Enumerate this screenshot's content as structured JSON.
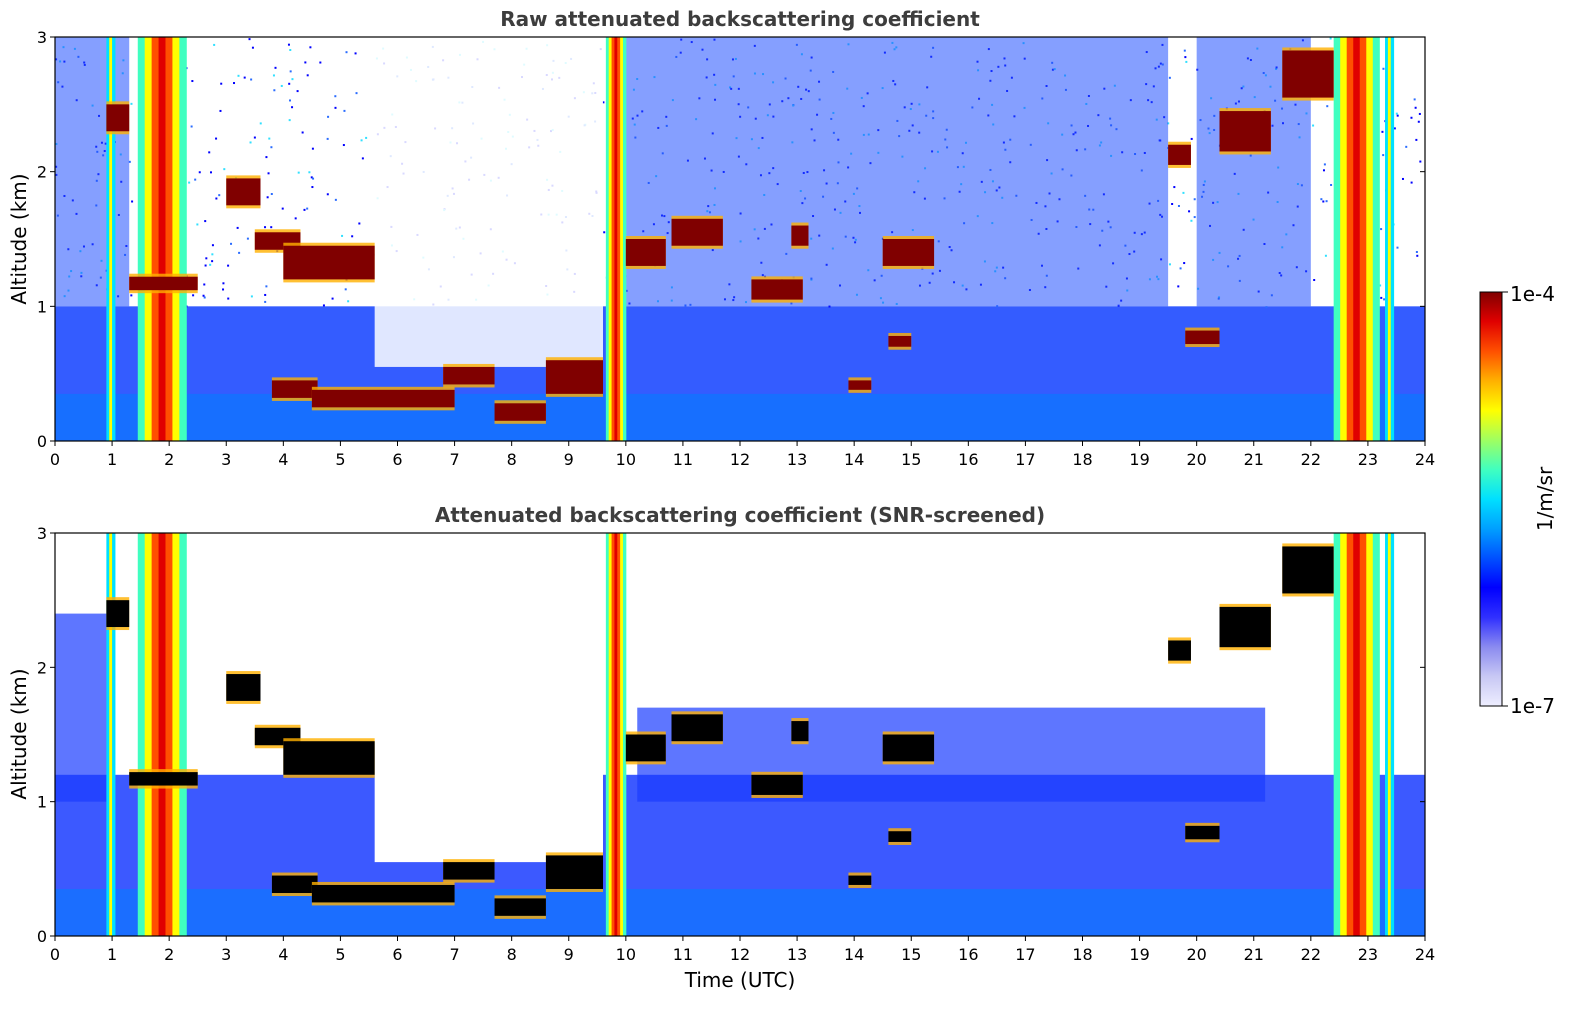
{
  "chart_data": [
    {
      "type": "heatmap",
      "title": "Raw attenuated backscattering coefficient",
      "xlabel": "",
      "ylabel": "Altitude (km)",
      "xlim": [
        0,
        24
      ],
      "ylim": [
        0,
        3
      ],
      "xticks": [
        "0",
        "1",
        "2",
        "3",
        "4",
        "5",
        "6",
        "7",
        "8",
        "9",
        "10",
        "11",
        "12",
        "13",
        "14",
        "15",
        "16",
        "17",
        "18",
        "19",
        "20",
        "21",
        "22",
        "23",
        "24"
      ],
      "yticks": [
        "0",
        "1",
        "2",
        "3"
      ],
      "background_level": "noisy blue speckle"
    },
    {
      "type": "heatmap",
      "title": "Attenuated backscattering coefficient (SNR-screened)",
      "xlabel": "Time (UTC)",
      "ylabel": "Altitude (km)",
      "xlim": [
        0,
        24
      ],
      "ylim": [
        0,
        3
      ],
      "xticks": [
        "0",
        "1",
        "2",
        "3",
        "4",
        "5",
        "6",
        "7",
        "8",
        "9",
        "10",
        "11",
        "12",
        "13",
        "14",
        "15",
        "16",
        "17",
        "18",
        "19",
        "20",
        "21",
        "22",
        "23",
        "24"
      ],
      "yticks": [
        "0",
        "1",
        "2",
        "3"
      ],
      "background_level": "screened white"
    }
  ],
  "colorbar": {
    "label": "1/m/sr",
    "max_label": "1e-4",
    "min_label": "1e-7",
    "colors": [
      "#eeeeff",
      "#c8c8f4",
      "#8a8af0",
      "#3030ff",
      "#0000ff",
      "#0050ff",
      "#00a0ff",
      "#00e0ff",
      "#40ffc0",
      "#a0ff60",
      "#ffff00",
      "#ffb000",
      "#ff5000",
      "#e00000",
      "#800000"
    ]
  },
  "features": {
    "cloud_layers": [
      {
        "t": [
          1.3,
          2.5
        ],
        "h": [
          1.12,
          1.22
        ]
      },
      {
        "t": [
          3.0,
          3.6
        ],
        "h": [
          1.75,
          1.95
        ]
      },
      {
        "t": [
          3.5,
          4.3
        ],
        "h": [
          1.42,
          1.55
        ]
      },
      {
        "t": [
          4.0,
          5.6
        ],
        "h": [
          1.2,
          1.45
        ]
      },
      {
        "t": [
          3.8,
          4.6
        ],
        "h": [
          0.32,
          0.45
        ]
      },
      {
        "t": [
          4.5,
          7.0
        ],
        "h": [
          0.25,
          0.38
        ]
      },
      {
        "t": [
          6.8,
          7.7
        ],
        "h": [
          0.42,
          0.55
        ]
      },
      {
        "t": [
          7.7,
          8.6
        ],
        "h": [
          0.15,
          0.28
        ]
      },
      {
        "t": [
          8.6,
          9.6
        ],
        "h": [
          0.35,
          0.6
        ]
      },
      {
        "t": [
          10.0,
          10.7
        ],
        "h": [
          1.3,
          1.5
        ]
      },
      {
        "t": [
          10.8,
          11.7
        ],
        "h": [
          1.45,
          1.65
        ]
      },
      {
        "t": [
          12.2,
          13.1
        ],
        "h": [
          1.05,
          1.2
        ]
      },
      {
        "t": [
          12.9,
          13.2
        ],
        "h": [
          1.45,
          1.6
        ]
      },
      {
        "t": [
          13.9,
          14.3
        ],
        "h": [
          0.38,
          0.45
        ]
      },
      {
        "t": [
          14.5,
          15.4
        ],
        "h": [
          1.3,
          1.5
        ]
      },
      {
        "t": [
          14.6,
          15.0
        ],
        "h": [
          0.7,
          0.78
        ]
      },
      {
        "t": [
          19.5,
          19.9
        ],
        "h": [
          2.05,
          2.2
        ]
      },
      {
        "t": [
          19.8,
          20.4
        ],
        "h": [
          0.72,
          0.82
        ]
      },
      {
        "t": [
          20.4,
          21.3
        ],
        "h": [
          2.15,
          2.45
        ]
      },
      {
        "t": [
          21.5,
          22.4
        ],
        "h": [
          2.55,
          2.9
        ]
      },
      {
        "t": [
          0.9,
          1.3
        ],
        "h": [
          2.3,
          2.5
        ]
      }
    ],
    "vertical_columns": [
      {
        "t": [
          1.45,
          2.3
        ],
        "kind": "fog"
      },
      {
        "t": [
          0.9,
          1.05
        ],
        "kind": "precip"
      },
      {
        "t": [
          9.65,
          10.0
        ],
        "kind": "fog"
      },
      {
        "t": [
          22.4,
          23.2
        ],
        "kind": "fog"
      },
      {
        "t": [
          23.3,
          23.45
        ],
        "kind": "precip"
      }
    ]
  }
}
